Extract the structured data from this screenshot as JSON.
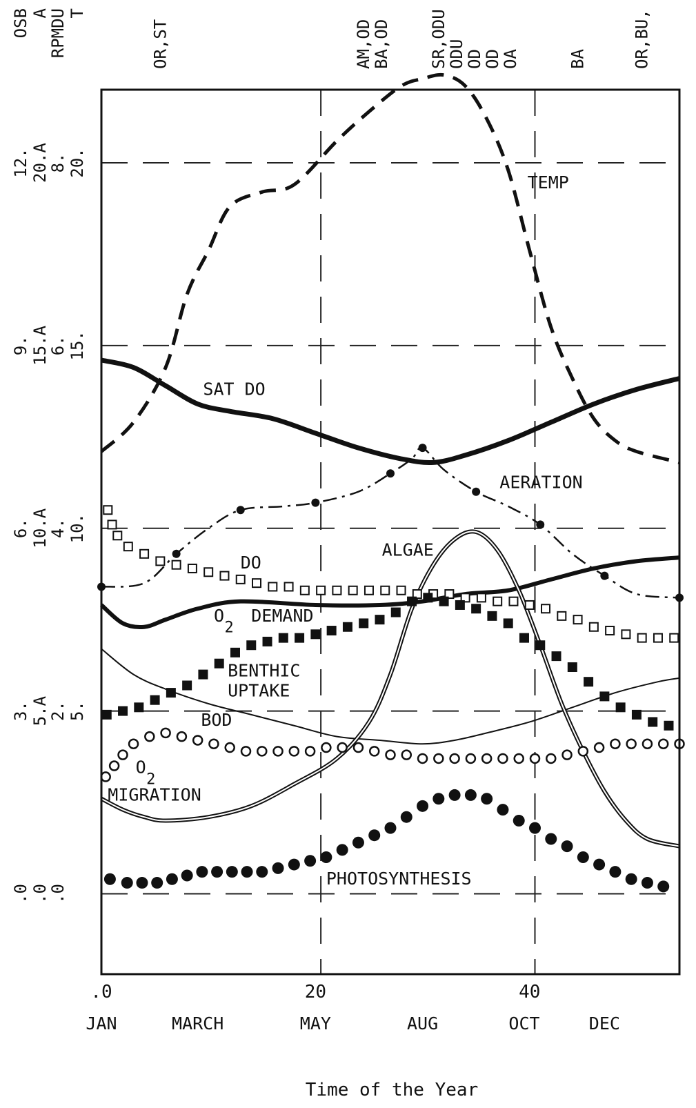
{
  "chart_data": {
    "type": "line",
    "xlabel": "Time of the Year",
    "x_ticks": [
      {
        "value": 0,
        "label": ".0"
      },
      {
        "value": 20,
        "label": "20"
      },
      {
        "value": 40,
        "label": "40"
      }
    ],
    "month_labels": [
      {
        "x": 0,
        "label": "JAN"
      },
      {
        "x": 9,
        "label": "MARCH"
      },
      {
        "x": 20,
        "label": "MAY"
      },
      {
        "x": 30,
        "label": "AUG"
      },
      {
        "x": 39.5,
        "label": "OCT"
      },
      {
        "x": 47,
        "label": "DEC"
      }
    ],
    "xlim": [
      0,
      54
    ],
    "ylim": [
      -2.2,
      22
    ],
    "y_ticks": [
      {
        "value": 0,
        "labels": [
          ".0",
          ".0",
          ".0"
        ]
      },
      {
        "value": 5,
        "labels": [
          "3.",
          "5.A",
          "2.",
          "5."
        ]
      },
      {
        "value": 10,
        "labels": [
          "6.",
          "10.A",
          "4.",
          "10."
        ]
      },
      {
        "value": 15,
        "labels": [
          "9.",
          "15.A",
          "6.",
          "15."
        ]
      },
      {
        "value": 20,
        "labels": [
          "12.",
          "20.A",
          "8.",
          "20."
        ]
      }
    ],
    "axis_header": [
      "OSB",
      "A",
      "RPMDU",
      "T"
    ],
    "top_annotations": [
      {
        "x": 5.5,
        "lines": [
          "OR,ST"
        ]
      },
      {
        "x": 24.5,
        "lines": [
          "AM,OD",
          "BA,OD"
        ]
      },
      {
        "x": 31.5,
        "lines": [
          "SR,ODU",
          "ODU",
          "OD",
          "OD",
          "OA"
        ]
      },
      {
        "x": 44.5,
        "lines": [
          "BA"
        ]
      },
      {
        "x": 50.5,
        "lines": [
          "OR,BU,"
        ]
      }
    ],
    "grid": {
      "horizontal": [
        0,
        5,
        10,
        15,
        20
      ],
      "vertical": [
        20.5,
        40.5
      ]
    },
    "series": [
      {
        "name": "TEMP",
        "style": "dashed",
        "points": [
          [
            0,
            12.1
          ],
          [
            3,
            12.9
          ],
          [
            6,
            14.4
          ],
          [
            8,
            16.4
          ],
          [
            10,
            17.6
          ],
          [
            12,
            18.8
          ],
          [
            15,
            19.2
          ],
          [
            18,
            19.4
          ],
          [
            22,
            20.6
          ],
          [
            25,
            21.4
          ],
          [
            28,
            22.1
          ],
          [
            30,
            22.3
          ],
          [
            32,
            22.4
          ],
          [
            34,
            22.1
          ],
          [
            36,
            21.2
          ],
          [
            38,
            19.8
          ],
          [
            40,
            17.6
          ],
          [
            42,
            15.5
          ],
          [
            44,
            14.1
          ],
          [
            46,
            13.0
          ],
          [
            48,
            12.4
          ],
          [
            50,
            12.1
          ],
          [
            54,
            11.8
          ]
        ]
      },
      {
        "name": "SAT DO",
        "style": "thick",
        "points": [
          [
            0,
            14.6
          ],
          [
            3,
            14.4
          ],
          [
            6,
            13.9
          ],
          [
            9,
            13.4
          ],
          [
            12,
            13.2
          ],
          [
            16,
            13.0
          ],
          [
            20,
            12.6
          ],
          [
            24,
            12.2
          ],
          [
            28,
            11.9
          ],
          [
            31,
            11.8
          ],
          [
            34,
            12.0
          ],
          [
            38,
            12.4
          ],
          [
            42,
            12.9
          ],
          [
            46,
            13.4
          ],
          [
            50,
            13.8
          ],
          [
            54,
            14.1
          ]
        ]
      },
      {
        "name": "AERATION",
        "style": "dashdot",
        "points": [
          [
            0,
            8.4
          ],
          [
            4,
            8.5
          ],
          [
            7,
            9.3
          ],
          [
            10,
            10.0
          ],
          [
            13,
            10.5
          ],
          [
            17,
            10.6
          ],
          [
            20,
            10.7
          ],
          [
            24,
            11.0
          ],
          [
            27,
            11.5
          ],
          [
            29,
            11.9
          ],
          [
            30,
            12.2
          ],
          [
            32,
            11.6
          ],
          [
            35,
            11.0
          ],
          [
            38,
            10.6
          ],
          [
            41,
            10.1
          ],
          [
            44,
            9.3
          ],
          [
            47,
            8.7
          ],
          [
            50,
            8.2
          ],
          [
            54,
            8.1
          ]
        ]
      },
      {
        "name": "O2 DEMAND",
        "style": "medium",
        "points": [
          [
            0,
            7.9
          ],
          [
            2,
            7.4
          ],
          [
            4,
            7.3
          ],
          [
            6,
            7.5
          ],
          [
            9,
            7.8
          ],
          [
            13,
            8.0
          ],
          [
            20,
            7.9
          ],
          [
            26,
            7.9
          ],
          [
            30,
            8.0
          ],
          [
            34,
            8.2
          ],
          [
            38,
            8.3
          ],
          [
            42,
            8.6
          ],
          [
            46,
            8.9
          ],
          [
            50,
            9.1
          ],
          [
            54,
            9.2
          ]
        ]
      },
      {
        "name": "BOD",
        "style": "thin",
        "points": [
          [
            0,
            6.7
          ],
          [
            3,
            6.0
          ],
          [
            6,
            5.6
          ],
          [
            10,
            5.2
          ],
          [
            14,
            4.9
          ],
          [
            18,
            4.6
          ],
          [
            22,
            4.3
          ],
          [
            26,
            4.2
          ],
          [
            30,
            4.1
          ],
          [
            33,
            4.2
          ],
          [
            36,
            4.4
          ],
          [
            40,
            4.7
          ],
          [
            44,
            5.1
          ],
          [
            48,
            5.5
          ],
          [
            52,
            5.8
          ],
          [
            54,
            5.9
          ]
        ]
      },
      {
        "name": "ALGAE",
        "style": "double",
        "points": [
          [
            0,
            2.6
          ],
          [
            2,
            2.3
          ],
          [
            4,
            2.1
          ],
          [
            6,
            2.0
          ],
          [
            10,
            2.1
          ],
          [
            14,
            2.4
          ],
          [
            18,
            3.0
          ],
          [
            22,
            3.7
          ],
          [
            25,
            4.7
          ],
          [
            27,
            6.0
          ],
          [
            29,
            7.8
          ],
          [
            31,
            9.0
          ],
          [
            33,
            9.7
          ],
          [
            35,
            9.9
          ],
          [
            37,
            9.4
          ],
          [
            39,
            8.3
          ],
          [
            41,
            6.8
          ],
          [
            43,
            5.2
          ],
          [
            45,
            3.9
          ],
          [
            47,
            2.8
          ],
          [
            49,
            2.0
          ],
          [
            51,
            1.5
          ],
          [
            54,
            1.3
          ]
        ]
      },
      {
        "name": "DO",
        "style": "open-square",
        "points": [
          [
            0.6,
            10.5
          ],
          [
            1,
            10.1
          ],
          [
            1.5,
            9.8
          ],
          [
            2.5,
            9.5
          ],
          [
            4,
            9.3
          ],
          [
            5.5,
            9.1
          ],
          [
            7,
            9.0
          ],
          [
            8.5,
            8.9
          ],
          [
            10,
            8.8
          ],
          [
            11.5,
            8.7
          ],
          [
            13,
            8.6
          ],
          [
            14.5,
            8.5
          ],
          [
            16,
            8.4
          ],
          [
            17.5,
            8.4
          ],
          [
            19,
            8.3
          ],
          [
            20.5,
            8.3
          ],
          [
            22,
            8.3
          ],
          [
            23.5,
            8.3
          ],
          [
            25,
            8.3
          ],
          [
            26.5,
            8.3
          ],
          [
            28,
            8.3
          ],
          [
            29.5,
            8.2
          ],
          [
            31,
            8.2
          ],
          [
            32.5,
            8.2
          ],
          [
            34,
            8.1
          ],
          [
            35.5,
            8.1
          ],
          [
            37,
            8.0
          ],
          [
            38.5,
            8.0
          ],
          [
            40,
            7.9
          ],
          [
            41.5,
            7.8
          ],
          [
            43,
            7.6
          ],
          [
            44.5,
            7.5
          ],
          [
            46,
            7.3
          ],
          [
            47.5,
            7.2
          ],
          [
            49,
            7.1
          ],
          [
            50.5,
            7.0
          ],
          [
            52,
            7.0
          ],
          [
            53.5,
            7.0
          ]
        ]
      },
      {
        "name": "BENTHIC UPTAKE",
        "style": "filled-square",
        "points": [
          [
            0.5,
            4.9
          ],
          [
            2,
            5.0
          ],
          [
            3.5,
            5.1
          ],
          [
            5,
            5.3
          ],
          [
            6.5,
            5.5
          ],
          [
            8,
            5.7
          ],
          [
            9.5,
            6.0
          ],
          [
            11,
            6.3
          ],
          [
            12.5,
            6.6
          ],
          [
            14,
            6.8
          ],
          [
            15.5,
            6.9
          ],
          [
            17,
            7.0
          ],
          [
            18.5,
            7.0
          ],
          [
            20,
            7.1
          ],
          [
            21.5,
            7.2
          ],
          [
            23,
            7.3
          ],
          [
            24.5,
            7.4
          ],
          [
            26,
            7.5
          ],
          [
            27.5,
            7.7
          ],
          [
            29,
            8.0
          ],
          [
            30.5,
            8.1
          ],
          [
            32,
            8.0
          ],
          [
            33.5,
            7.9
          ],
          [
            35,
            7.8
          ],
          [
            36.5,
            7.6
          ],
          [
            38,
            7.4
          ],
          [
            39.5,
            7.0
          ],
          [
            41,
            6.8
          ],
          [
            42.5,
            6.5
          ],
          [
            44,
            6.2
          ],
          [
            45.5,
            5.8
          ],
          [
            47,
            5.4
          ],
          [
            48.5,
            5.1
          ],
          [
            50,
            4.9
          ],
          [
            51.5,
            4.7
          ],
          [
            53,
            4.6
          ]
        ]
      },
      {
        "name": "O2 MIGRATION",
        "style": "open-circle",
        "points": [
          [
            0.4,
            3.2
          ],
          [
            1.2,
            3.5
          ],
          [
            2,
            3.8
          ],
          [
            3,
            4.1
          ],
          [
            4.5,
            4.3
          ],
          [
            6,
            4.4
          ],
          [
            7.5,
            4.3
          ],
          [
            9,
            4.2
          ],
          [
            10.5,
            4.1
          ],
          [
            12,
            4.0
          ],
          [
            13.5,
            3.9
          ],
          [
            15,
            3.9
          ],
          [
            16.5,
            3.9
          ],
          [
            18,
            3.9
          ],
          [
            19.5,
            3.9
          ],
          [
            21,
            4.0
          ],
          [
            22.5,
            4.0
          ],
          [
            24,
            4.0
          ],
          [
            25.5,
            3.9
          ],
          [
            27,
            3.8
          ],
          [
            28.5,
            3.8
          ],
          [
            30,
            3.7
          ],
          [
            31.5,
            3.7
          ],
          [
            33,
            3.7
          ],
          [
            34.5,
            3.7
          ],
          [
            36,
            3.7
          ],
          [
            37.5,
            3.7
          ],
          [
            39,
            3.7
          ],
          [
            40.5,
            3.7
          ],
          [
            42,
            3.7
          ],
          [
            43.5,
            3.8
          ],
          [
            45,
            3.9
          ],
          [
            46.5,
            4.0
          ],
          [
            48,
            4.1
          ],
          [
            49.5,
            4.1
          ],
          [
            51,
            4.1
          ],
          [
            52.5,
            4.1
          ],
          [
            54,
            4.1
          ]
        ]
      },
      {
        "name": "PHOTOSYNTHESIS",
        "style": "filled-circle",
        "points": [
          [
            0.8,
            0.4
          ],
          [
            2.4,
            0.3
          ],
          [
            3.8,
            0.3
          ],
          [
            5.2,
            0.3
          ],
          [
            6.6,
            0.4
          ],
          [
            8,
            0.5
          ],
          [
            9.4,
            0.6
          ],
          [
            10.8,
            0.6
          ],
          [
            12.2,
            0.6
          ],
          [
            13.6,
            0.6
          ],
          [
            15,
            0.6
          ],
          [
            16.5,
            0.7
          ],
          [
            18,
            0.8
          ],
          [
            19.5,
            0.9
          ],
          [
            21,
            1.0
          ],
          [
            22.5,
            1.2
          ],
          [
            24,
            1.4
          ],
          [
            25.5,
            1.6
          ],
          [
            27,
            1.8
          ],
          [
            28.5,
            2.1
          ],
          [
            30,
            2.4
          ],
          [
            31.5,
            2.6
          ],
          [
            33,
            2.7
          ],
          [
            34.5,
            2.7
          ],
          [
            36,
            2.6
          ],
          [
            37.5,
            2.3
          ],
          [
            39,
            2.0
          ],
          [
            40.5,
            1.8
          ],
          [
            42,
            1.5
          ],
          [
            43.5,
            1.3
          ],
          [
            45,
            1.0
          ],
          [
            46.5,
            0.8
          ],
          [
            48,
            0.6
          ],
          [
            49.5,
            0.4
          ],
          [
            51,
            0.3
          ],
          [
            52.5,
            0.2
          ]
        ]
      }
    ],
    "labels": [
      {
        "text": "TEMP",
        "x": 39.8,
        "y": 19.3
      },
      {
        "text": "SAT DO",
        "x": 9.5,
        "y": 13.65
      },
      {
        "text": "AERATION",
        "x": 37.2,
        "y": 11.1
      },
      {
        "text": "ALGAE",
        "x": 26.2,
        "y": 9.25
      },
      {
        "text": "DO",
        "x": 13.0,
        "y": 8.9
      },
      {
        "text": "O",
        "x": 10.5,
        "y": 7.45
      },
      {
        "text": "2",
        "x": 11.5,
        "y": 7.15
      },
      {
        "text": "DEMAND",
        "x": 14.0,
        "y": 7.45
      },
      {
        "text": "BENTHIC",
        "x": 11.8,
        "y": 5.95
      },
      {
        "text": "UPTAKE",
        "x": 11.8,
        "y": 5.4
      },
      {
        "text": "BOD",
        "x": 9.3,
        "y": 4.6
      },
      {
        "text": "O",
        "x": 3.2,
        "y": 3.3
      },
      {
        "text": "2",
        "x": 4.2,
        "y": 3.0
      },
      {
        "text": "MIGRATION",
        "x": 0.6,
        "y": 2.55
      },
      {
        "text": "PHOTOSYNTHESIS",
        "x": 21.0,
        "y": 0.25
      }
    ]
  }
}
